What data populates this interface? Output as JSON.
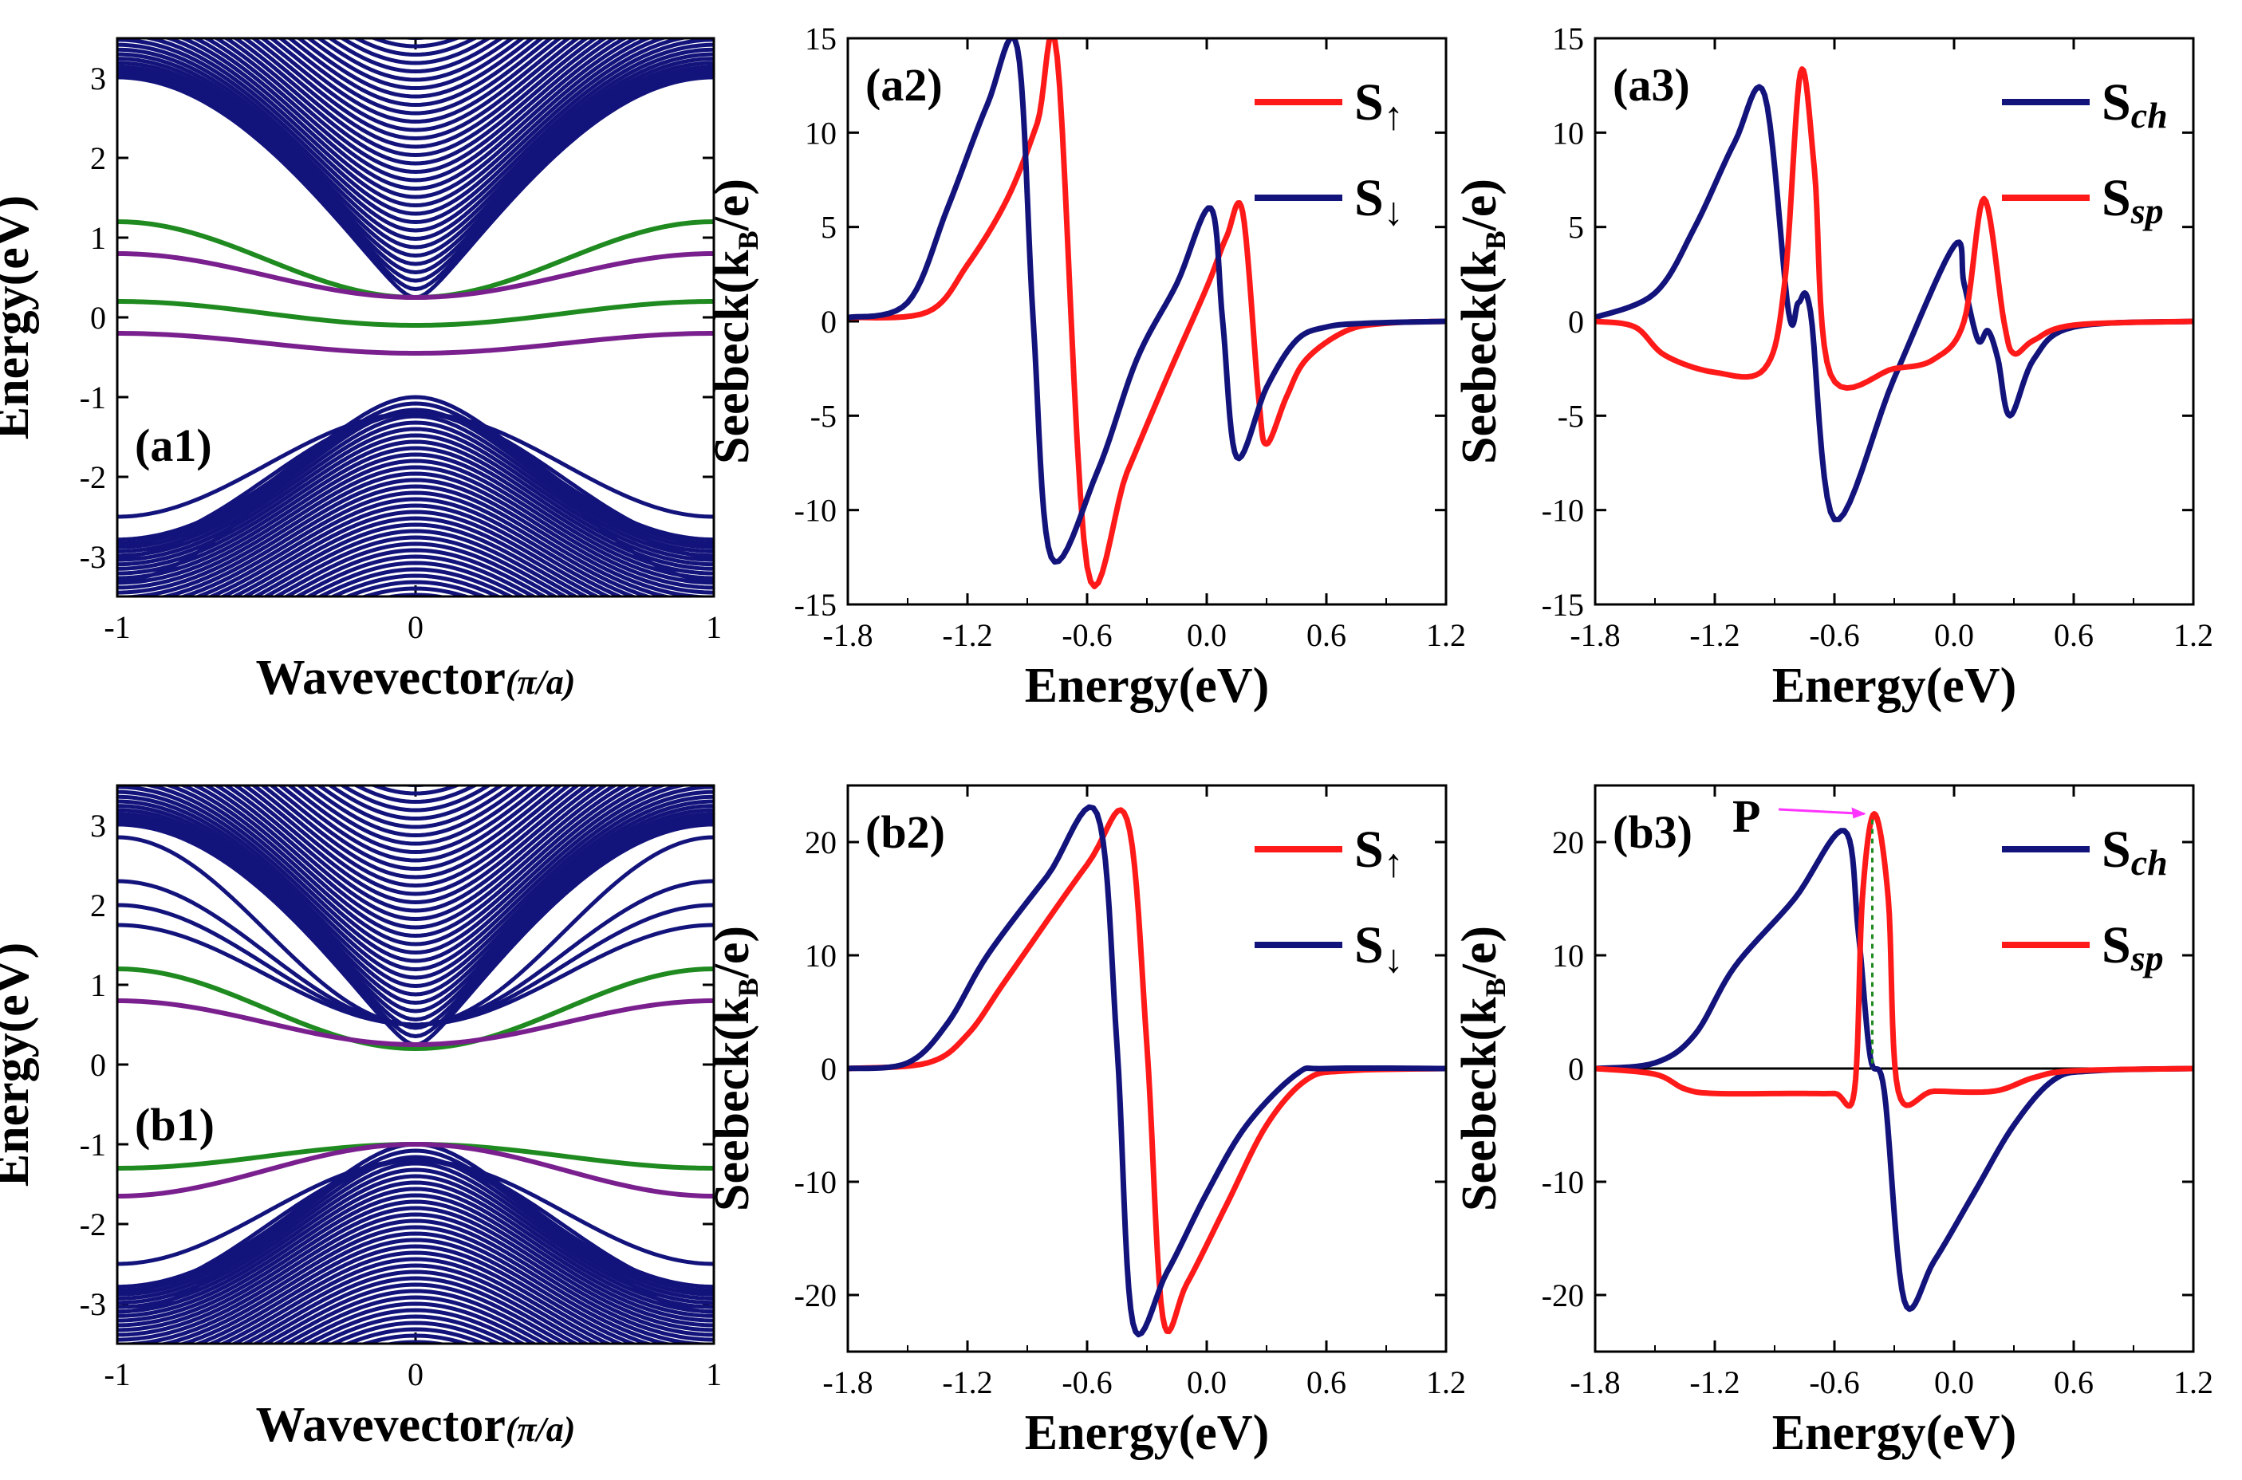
{
  "colors": {
    "bulk": "#13137c",
    "green": "#1f8a1f",
    "purple": "#7a1f8e",
    "red": "#ff1a1a",
    "blue": "#13137c",
    "axis": "#000000",
    "magenta": "#ff33ff"
  },
  "chart_data": [
    {
      "id": "a1",
      "type": "line",
      "label": "(a1)",
      "xlabel": "Wavevector",
      "xlabel_unit": "(π/a)",
      "ylabel": "Energy(eV)",
      "xlim": [
        -1,
        1
      ],
      "ylim": [
        -3.5,
        3.5
      ],
      "xticks": [
        "-1",
        "0",
        "1"
      ],
      "yticks": [
        "-3",
        "-2",
        "-1",
        "0",
        "1",
        "2",
        "3"
      ],
      "bands": [
        {
          "name": "conduction bulk bands",
          "color": "bulk",
          "count": 32,
          "min_energy": 0.25
        },
        {
          "name": "valence bulk bands",
          "color": "bulk",
          "count": 32,
          "max_energy": -1.0
        },
        {
          "name": "edge band upper (green)",
          "color": "green",
          "energy_at_0": 0.25,
          "energy_at_edge": 1.2
        },
        {
          "name": "edge band upper (purple)",
          "color": "purple",
          "energy_at_0": 0.25,
          "energy_at_edge": 0.8
        },
        {
          "name": "edge band mid (green)",
          "color": "green",
          "energy_at_0": -0.1,
          "energy_at_edge": 0.2
        },
        {
          "name": "edge band lower (purple)",
          "color": "purple",
          "energy_at_0": -0.45,
          "energy_at_edge": -0.2
        }
      ]
    },
    {
      "id": "a2",
      "type": "line",
      "label": "(a2)",
      "xlabel": "Energy(eV)",
      "ylabel": "Seebeck(k",
      "ylabel_sub": "B",
      "ylabel_tail": "/e)",
      "xlim": [
        -1.8,
        1.2
      ],
      "ylim": [
        -15,
        15
      ],
      "xticks": [
        "-1.8",
        "-1.2",
        "-0.6",
        "0.0",
        "0.6",
        "1.2"
      ],
      "yticks": [
        "-15",
        "-10",
        "-5",
        "0",
        "5",
        "10",
        "15"
      ],
      "legend_position": "top-right",
      "series": [
        {
          "name": "S",
          "arrow": "↑",
          "color": "red",
          "x": [
            -1.8,
            -1.4,
            -1.2,
            -1.0,
            -0.85,
            -0.75,
            -0.6,
            -0.4,
            -0.2,
            0.0,
            0.1,
            0.18,
            0.26,
            0.3,
            0.4,
            0.5,
            0.7,
            0.9,
            1.2
          ],
          "y": [
            0.2,
            0.5,
            3,
            6.5,
            10.5,
            14,
            -13,
            -8,
            -3,
            1.8,
            4.5,
            5.8,
            -4,
            -6.5,
            -4,
            -2,
            -0.5,
            -0.1,
            0
          ]
        },
        {
          "name": "S",
          "arrow": "↓",
          "color": "blue",
          "x": [
            -1.8,
            -1.5,
            -1.3,
            -1.1,
            -0.95,
            -0.87,
            -0.78,
            -0.55,
            -0.35,
            -0.15,
            0.02,
            0.08,
            0.15,
            0.3,
            0.45,
            0.6,
            0.8,
            1.2
          ],
          "y": [
            0.2,
            1,
            6,
            11.5,
            14.5,
            0,
            -12.5,
            -8,
            -2,
            2,
            6,
            0,
            -7.2,
            -3.5,
            -1,
            -0.3,
            -0.1,
            0
          ]
        }
      ]
    },
    {
      "id": "a3",
      "type": "line",
      "label": "(a3)",
      "xlabel": "Energy(eV)",
      "ylabel": "Seebeck(k",
      "ylabel_sub": "B",
      "ylabel_tail": "/e)",
      "xlim": [
        -1.8,
        1.2
      ],
      "ylim": [
        -15,
        15
      ],
      "xticks": [
        "-1.8",
        "-1.2",
        "-0.6",
        "0.0",
        "0.6",
        "1.2"
      ],
      "yticks": [
        "-15",
        "-10",
        "-5",
        "0",
        "5",
        "10",
        "15"
      ],
      "legend_position": "top-right",
      "series": [
        {
          "name": "S",
          "sub": "ch",
          "color": "blue",
          "x": [
            -1.8,
            -1.5,
            -1.3,
            -1.1,
            -0.95,
            -0.83,
            -0.78,
            -0.72,
            -0.6,
            -0.3,
            0.0,
            0.05,
            0.12,
            0.17,
            0.22,
            0.28,
            0.4,
            0.6,
            1.2
          ],
          "y": [
            0.2,
            1.5,
            5,
            9.5,
            12,
            0.5,
            1,
            0.5,
            -10.5,
            -3,
            4,
            2,
            -1,
            -0.5,
            -2,
            -5,
            -2,
            -0.3,
            0
          ]
        },
        {
          "name": "S",
          "sub": "sp",
          "color": "red",
          "x": [
            -1.8,
            -1.6,
            -1.45,
            -1.2,
            -0.95,
            -0.85,
            -0.77,
            -0.7,
            -0.62,
            -0.3,
            -0.1,
            0.05,
            0.15,
            0.25,
            0.3,
            0.4,
            0.6,
            1.2
          ],
          "y": [
            0,
            -0.3,
            -1.8,
            -2.7,
            -2.5,
            2,
            13.2,
            8,
            -2.8,
            -2.5,
            -2,
            0,
            6.5,
            0,
            -1.7,
            -1,
            -0.2,
            0
          ]
        }
      ]
    },
    {
      "id": "b1",
      "type": "line",
      "label": "(b1)",
      "xlabel": "Wavevector",
      "xlabel_unit": "(π/a)",
      "ylabel": "Energy(eV)",
      "xlim": [
        -1,
        1
      ],
      "ylim": [
        -3.5,
        3.5
      ],
      "xticks": [
        "-1",
        "0",
        "1"
      ],
      "yticks": [
        "-3",
        "-2",
        "-1",
        "0",
        "1",
        "2",
        "3"
      ],
      "bands": [
        {
          "name": "conduction bulk bands",
          "color": "bulk",
          "count": 32,
          "min_energy": 0.25
        },
        {
          "name": "valence bulk bands",
          "color": "bulk",
          "count": 32,
          "max_energy": -1.0
        },
        {
          "name": "edge band upper (green)",
          "color": "green",
          "energy_at_0": 0.2,
          "energy_at_edge": 1.2
        },
        {
          "name": "edge band upper (purple)",
          "color": "purple",
          "energy_at_0": 0.25,
          "energy_at_edge": 0.8
        },
        {
          "name": "edge band lower (green)",
          "color": "green",
          "energy_at_0": -1.0,
          "energy_at_edge": -1.3
        },
        {
          "name": "edge band lower (purple)",
          "color": "purple",
          "energy_at_0": -1.0,
          "energy_at_edge": -1.65
        }
      ]
    },
    {
      "id": "b2",
      "type": "line",
      "label": "(b2)",
      "xlabel": "Energy(eV)",
      "ylabel": "Seebeck(k",
      "ylabel_sub": "B",
      "ylabel_tail": "/e)",
      "xlim": [
        -1.8,
        1.2
      ],
      "ylim": [
        -25,
        25
      ],
      "xticks": [
        "-1.8",
        "-1.2",
        "-0.6",
        "0.0",
        "0.6",
        "1.2"
      ],
      "yticks": [
        "-20",
        "-10",
        "0",
        "10",
        "20"
      ],
      "legend_position": "top-right",
      "series": [
        {
          "name": "S",
          "arrow": "↑",
          "color": "red",
          "x": [
            -1.8,
            -1.4,
            -1.2,
            -1.0,
            -0.6,
            -0.4,
            -0.3,
            -0.22,
            -0.1,
            0.1,
            0.3,
            0.5,
            0.7,
            1.2
          ],
          "y": [
            0,
            0.5,
            3,
            8,
            18,
            22,
            2,
            -22,
            -19,
            -12,
            -5,
            -1,
            -0.2,
            0
          ]
        },
        {
          "name": "S",
          "arrow": "↓",
          "color": "blue",
          "x": [
            -1.8,
            -1.5,
            -1.3,
            -1.1,
            -0.8,
            -0.55,
            -0.45,
            -0.37,
            -0.2,
            0.0,
            0.2,
            0.45,
            0.6,
            1.2
          ],
          "y": [
            0,
            0.5,
            4,
            10,
            17,
            22.5,
            2,
            -22.5,
            -18,
            -11,
            -5,
            -0.5,
            0,
            0
          ]
        }
      ]
    },
    {
      "id": "b3",
      "type": "line",
      "label": "(b3)",
      "annotation": "P",
      "xlabel": "Energy(eV)",
      "ylabel": "Seebeck(k",
      "ylabel_sub": "B",
      "ylabel_tail": "/e)",
      "xlim": [
        -1.8,
        1.2
      ],
      "ylim": [
        -25,
        25
      ],
      "xticks": [
        "-1.8",
        "-1.2",
        "-0.6",
        "0.0",
        "0.6",
        "1.2"
      ],
      "yticks": [
        "-20",
        "-10",
        "0",
        "10",
        "20"
      ],
      "legend_position": "top-right",
      "zero_line": true,
      "series": [
        {
          "name": "S",
          "sub": "ch",
          "color": "blue",
          "x": [
            -1.8,
            -1.5,
            -1.3,
            -1.1,
            -0.8,
            -0.55,
            -0.48,
            -0.42,
            -0.35,
            -0.25,
            -0.1,
            0.1,
            0.3,
            0.5,
            0.7,
            1.2
          ],
          "y": [
            0,
            0.5,
            3,
            9,
            15,
            21,
            12,
            1,
            -2,
            -20.5,
            -17,
            -11,
            -5,
            -1,
            -0.2,
            0
          ]
        },
        {
          "name": "S",
          "sub": "sp",
          "color": "red",
          "x": [
            -1.8,
            -1.5,
            -1.35,
            -1.2,
            -0.8,
            -0.6,
            -0.5,
            -0.46,
            -0.4,
            -0.33,
            -0.28,
            -0.1,
            0.2,
            0.4,
            0.6,
            1.2
          ],
          "y": [
            0,
            -0.5,
            -1.8,
            -2.2,
            -2.2,
            -2.2,
            -2.0,
            15,
            22.5,
            15,
            -2,
            -2,
            -2,
            -0.8,
            -0.2,
            0
          ]
        }
      ]
    }
  ]
}
